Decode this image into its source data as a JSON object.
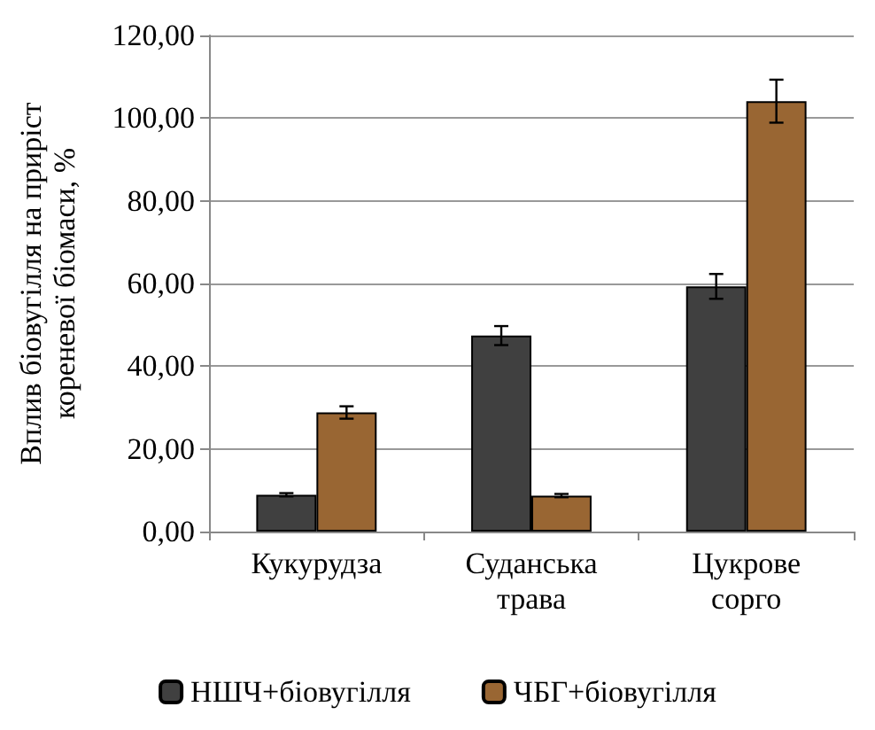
{
  "chart_data": {
    "type": "bar",
    "ylabel": "Вплив біовугілля на приріст кореневої біомаси, %",
    "categories": [
      "Кукурудза",
      "Суданська трава",
      "Цукрове сорго"
    ],
    "series": [
      {
        "name": "НШЧ+біовугілля",
        "color": "#404040",
        "values": [
          8.9,
          47.4,
          59.3
        ],
        "errors": [
          0.4,
          2.3,
          3.0
        ]
      },
      {
        "name": "ЧБГ+біовугілля",
        "color": "#996633",
        "values": [
          28.8,
          8.7,
          104.1
        ],
        "errors": [
          1.5,
          0.4,
          5.2
        ]
      }
    ],
    "ylim": [
      0,
      120
    ],
    "yticks": [
      {
        "value": 0,
        "label": "0,00"
      },
      {
        "value": 20,
        "label": "20,00"
      },
      {
        "value": 40,
        "label": "40,00"
      },
      {
        "value": 60,
        "label": "60,00"
      },
      {
        "value": 80,
        "label": "80,00"
      },
      {
        "value": 100,
        "label": "100,00"
      },
      {
        "value": 120,
        "label": "120,00"
      }
    ],
    "grid": "y",
    "legend": "bottom"
  }
}
